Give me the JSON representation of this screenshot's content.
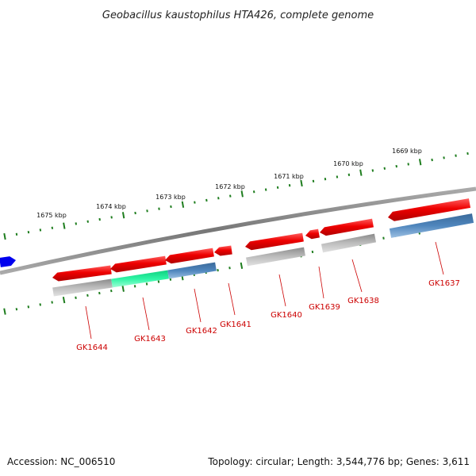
{
  "title": "Geobacillus kaustophilus HTA426, complete genome",
  "footer": {
    "accession": "Accession: NC_006510",
    "summary": "Topology: circular; Length: 3,544,776 bp; Genes: 3,611"
  },
  "colors": {
    "outer_track": "#1e7d1e",
    "genome_line": "#888888",
    "gene_forward": "#ee0000",
    "feature_gray": "#b4b4b4",
    "feature_green": "#22ee9a",
    "feature_blue": "#4a7fb5",
    "neighbor_gene": "#0000ee",
    "label_text": "#cc0000"
  },
  "scale_labels": [
    {
      "text": "1675 kbp"
    },
    {
      "text": "1674 kbp"
    },
    {
      "text": "1673 kbp"
    },
    {
      "text": "1672 kbp"
    },
    {
      "text": "1671 kbp"
    },
    {
      "text": "1670 kbp"
    },
    {
      "text": "1669 kbp"
    }
  ],
  "genes": [
    {
      "name": "GK1644"
    },
    {
      "name": "GK1643"
    },
    {
      "name": "GK1642"
    },
    {
      "name": "GK1641"
    },
    {
      "name": "GK1640"
    },
    {
      "name": "GK1639"
    },
    {
      "name": "GK1638"
    },
    {
      "name": "GK1637"
    }
  ]
}
